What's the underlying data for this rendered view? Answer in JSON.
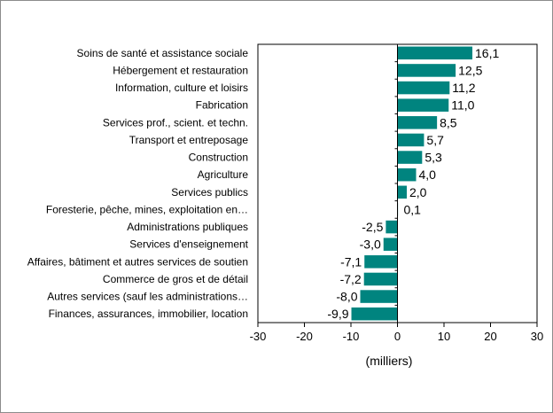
{
  "chart_data": {
    "type": "bar",
    "orientation": "horizontal",
    "categories": [
      "Soins de santé et assistance sociale",
      "Hébergement et restauration",
      "Information, culture et loisirs",
      "Fabrication",
      "Services prof., scient. et techn.",
      "Transport et entreposage",
      "Construction",
      "Agriculture",
      "Services publics",
      "Foresterie, pêche, mines, exploitation en…",
      "Administrations publiques",
      "Services d'enseignement",
      "Affaires, bâtiment et autres services de soutien",
      "Commerce de gros et de détail",
      "Autres services (sauf les administrations…",
      "Finances, assurances, immobilier, location"
    ],
    "values": [
      16.1,
      12.5,
      11.2,
      11.0,
      8.5,
      5.7,
      5.3,
      4.0,
      2.0,
      0.1,
      -2.5,
      -3.0,
      -7.1,
      -7.2,
      -8.0,
      -9.9
    ],
    "value_labels": [
      "16,1",
      "12,5",
      "11,2",
      "11,0",
      "8,5",
      "5,7",
      "5,3",
      "4,0",
      "2,0",
      "0,1",
      "-2,5",
      "-3,0",
      "-7,1",
      "-7,2",
      "-8,0",
      "-9,9"
    ],
    "xlabel": "(milliers)",
    "ylabel": "",
    "xlim": [
      -30,
      30
    ],
    "xticks": [
      -30,
      -20,
      -10,
      0,
      10,
      20,
      30
    ],
    "xtick_labels": [
      "-30",
      "-20",
      "-10",
      "0",
      "10",
      "20",
      "30"
    ],
    "bar_color": "#00847f",
    "grid": false,
    "legend": "none"
  }
}
